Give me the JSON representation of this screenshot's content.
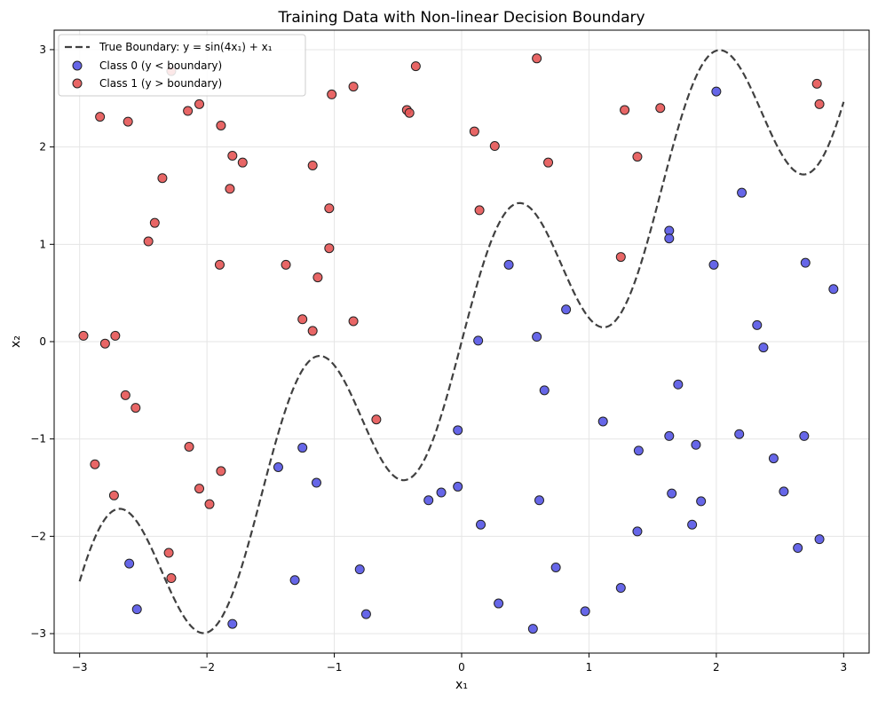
{
  "chart_data": {
    "type": "scatter",
    "title": "Training Data with Non-linear Decision Boundary",
    "xlabel": "x₁",
    "ylabel": "x₂",
    "xlim": [
      -3.2,
      3.2
    ],
    "ylim": [
      -3.2,
      3.2
    ],
    "xticks": [
      -3,
      -2,
      -1,
      0,
      1,
      2,
      3
    ],
    "yticks": [
      -3,
      -2,
      -1,
      0,
      1,
      2,
      3
    ],
    "xtick_labels": [
      "−3",
      "−2",
      "−1",
      "0",
      "1",
      "2",
      "3"
    ],
    "ytick_labels": [
      "−3",
      "−2",
      "−1",
      "0",
      "1",
      "2",
      "3"
    ],
    "grid": true,
    "legend_position": "top-left",
    "boundary": {
      "name": "True Boundary: y = sin(4x₁) + x₁",
      "color": "#404040",
      "style": "dashed"
    },
    "series": [
      {
        "name": "Class 0 (y < boundary)",
        "color": "#5555e6",
        "edge_color": "#222222",
        "points": [
          [
            2.0,
            2.57
          ],
          [
            2.2,
            1.53
          ],
          [
            1.63,
            1.14
          ],
          [
            1.63,
            1.06
          ],
          [
            1.98,
            0.79
          ],
          [
            2.7,
            0.81
          ],
          [
            2.92,
            0.54
          ],
          [
            0.37,
            0.79
          ],
          [
            0.82,
            0.33
          ],
          [
            0.13,
            0.01
          ],
          [
            0.59,
            0.05
          ],
          [
            2.32,
            0.17
          ],
          [
            2.37,
            -0.06
          ],
          [
            0.65,
            -0.5
          ],
          [
            1.7,
            -0.44
          ],
          [
            -0.03,
            -0.91
          ],
          [
            1.11,
            -0.82
          ],
          [
            1.63,
            -0.97
          ],
          [
            1.84,
            -1.06
          ],
          [
            2.18,
            -0.95
          ],
          [
            2.69,
            -0.97
          ],
          [
            1.39,
            -1.12
          ],
          [
            2.45,
            -1.2
          ],
          [
            -1.44,
            -1.29
          ],
          [
            -1.25,
            -1.09
          ],
          [
            -1.14,
            -1.45
          ],
          [
            -0.16,
            -1.55
          ],
          [
            -0.26,
            -1.63
          ],
          [
            -0.03,
            -1.49
          ],
          [
            0.61,
            -1.63
          ],
          [
            1.65,
            -1.56
          ],
          [
            1.88,
            -1.64
          ],
          [
            2.53,
            -1.54
          ],
          [
            0.15,
            -1.88
          ],
          [
            1.38,
            -1.95
          ],
          [
            1.81,
            -1.88
          ],
          [
            2.64,
            -2.12
          ],
          [
            2.81,
            -2.03
          ],
          [
            -2.61,
            -2.28
          ],
          [
            -0.8,
            -2.34
          ],
          [
            0.74,
            -2.32
          ],
          [
            -1.31,
            -2.45
          ],
          [
            1.25,
            -2.53
          ],
          [
            -2.55,
            -2.75
          ],
          [
            0.29,
            -2.69
          ],
          [
            -0.75,
            -2.8
          ],
          [
            0.97,
            -2.77
          ],
          [
            -1.8,
            -2.9
          ],
          [
            0.56,
            -2.95
          ]
        ]
      },
      {
        "name": "Class 1 (y > boundary)",
        "color": "#e65555",
        "edge_color": "#222222",
        "points": [
          [
            -2.28,
            2.78
          ],
          [
            -0.36,
            2.83
          ],
          [
            0.59,
            2.91
          ],
          [
            2.79,
            2.65
          ],
          [
            -2.84,
            2.31
          ],
          [
            -2.62,
            2.26
          ],
          [
            -2.15,
            2.37
          ],
          [
            -2.06,
            2.44
          ],
          [
            -1.89,
            2.22
          ],
          [
            -1.02,
            2.54
          ],
          [
            -0.85,
            2.62
          ],
          [
            -0.43,
            2.38
          ],
          [
            -0.41,
            2.35
          ],
          [
            1.28,
            2.38
          ],
          [
            1.56,
            2.4
          ],
          [
            2.81,
            2.44
          ],
          [
            0.1,
            2.16
          ],
          [
            0.26,
            2.01
          ],
          [
            -1.8,
            1.91
          ],
          [
            -1.72,
            1.84
          ],
          [
            -1.17,
            1.81
          ],
          [
            0.68,
            1.84
          ],
          [
            1.38,
            1.9
          ],
          [
            -2.35,
            1.68
          ],
          [
            -1.82,
            1.57
          ],
          [
            -1.04,
            1.37
          ],
          [
            0.14,
            1.35
          ],
          [
            -2.41,
            1.22
          ],
          [
            -2.46,
            1.03
          ],
          [
            -1.04,
            0.96
          ],
          [
            -1.9,
            0.79
          ],
          [
            -1.38,
            0.79
          ],
          [
            1.25,
            0.87
          ],
          [
            -1.13,
            0.66
          ],
          [
            -1.25,
            0.23
          ],
          [
            -0.85,
            0.21
          ],
          [
            -1.17,
            0.11
          ],
          [
            -2.97,
            0.06
          ],
          [
            -2.8,
            -0.02
          ],
          [
            -2.72,
            0.06
          ],
          [
            -2.64,
            -0.55
          ],
          [
            -2.56,
            -0.68
          ],
          [
            -0.67,
            -0.8
          ],
          [
            -2.14,
            -1.08
          ],
          [
            -2.88,
            -1.26
          ],
          [
            -1.89,
            -1.33
          ],
          [
            -2.73,
            -1.58
          ],
          [
            -2.06,
            -1.51
          ],
          [
            -1.98,
            -1.67
          ],
          [
            -2.3,
            -2.17
          ],
          [
            -2.28,
            -2.43
          ]
        ]
      }
    ]
  }
}
